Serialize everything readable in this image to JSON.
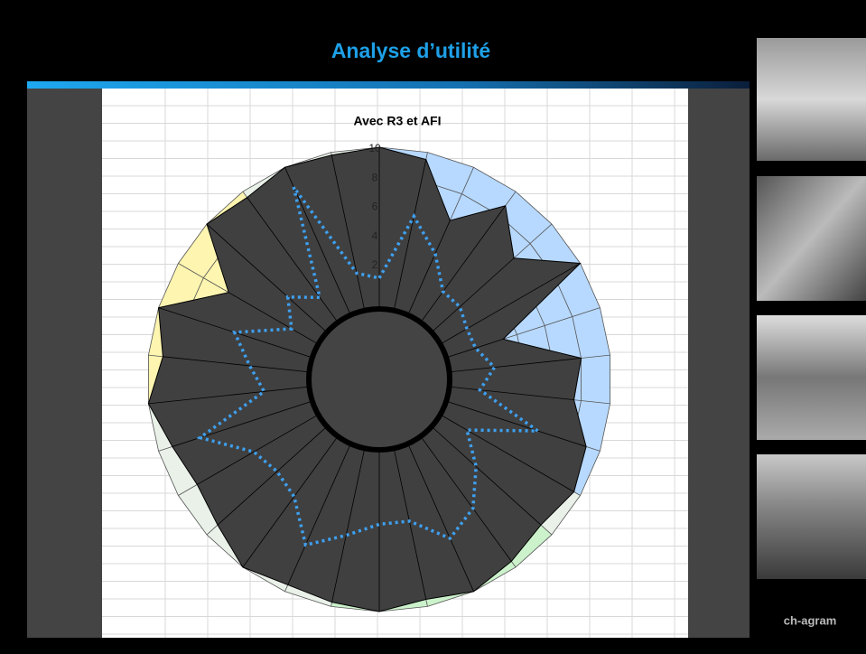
{
  "slide_title": "Analyse d’utilité",
  "brand": "ch-agram",
  "chart_data": {
    "type": "radar",
    "title": "Avec R3 et AFI",
    "ylim": [
      0,
      10
    ],
    "yticks": [
      2,
      4,
      6,
      8,
      10
    ],
    "series": [
      {
        "color": "#404040",
        "values": [
          10,
          9.5,
          6,
          8.8,
          6.5,
          10,
          3,
          8,
          7.5,
          9,
          9.5,
          9,
          9.5,
          10,
          9.5,
          10,
          9.7,
          9.5,
          10,
          9,
          8.5,
          9,
          10,
          9,
          10,
          6,
          10,
          9.5,
          10,
          9.8
        ]
      },
      {
        "color": "#3ea0f0",
        "values": [
          1,
          5.5,
          3.5,
          1.5,
          1.5,
          1,
          1,
          2,
          1,
          5.5,
          1,
          3,
          5,
          6,
          4,
          4,
          5,
          6.5,
          4,
          3.5,
          4,
          7,
          2,
          3,
          4.5,
          1,
          2.5,
          1,
          8.5,
          1.5
        ]
      }
    ]
  }
}
